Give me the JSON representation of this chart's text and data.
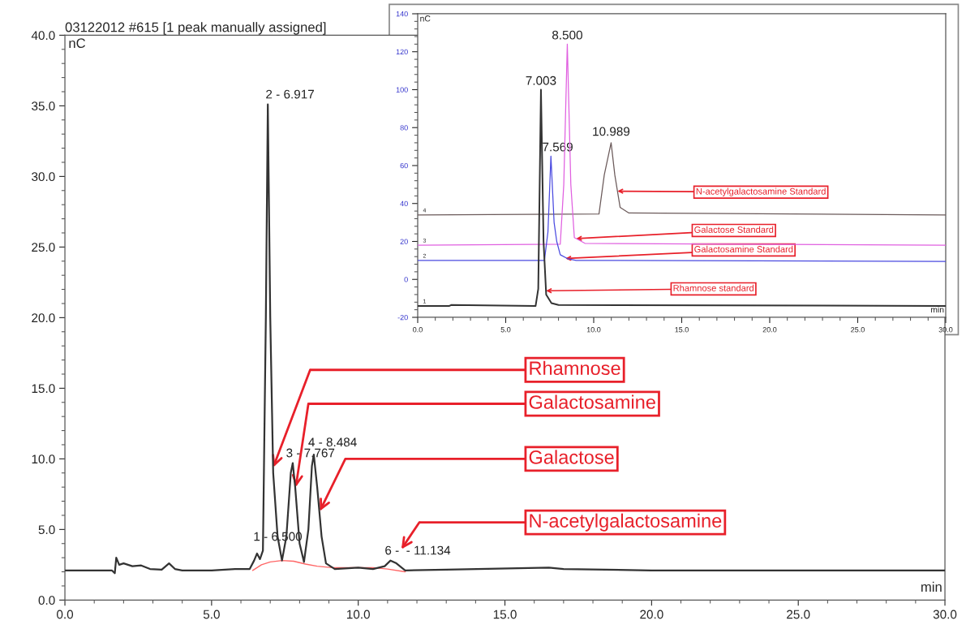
{
  "chart_data": [
    {
      "type": "line",
      "title": "03122012 #615 [1 peak manually assigned]",
      "xlabel": "min",
      "ylabel": "nC",
      "xlim": [
        0,
        30
      ],
      "ylim": [
        0,
        40
      ],
      "xticks": [
        {
          "value": 0,
          "label": "0.0"
        },
        {
          "value": 5,
          "label": "5.0"
        },
        {
          "value": 10,
          "label": "10.0"
        },
        {
          "value": 15,
          "label": "15.0"
        },
        {
          "value": 20,
          "label": "20.0"
        },
        {
          "value": 25,
          "label": "25.0"
        },
        {
          "value": 30,
          "label": "30.0"
        }
      ],
      "yticks": [
        {
          "value": 0,
          "label": "0.0"
        },
        {
          "value": 5,
          "label": "5.0"
        },
        {
          "value": 10,
          "label": "10.0"
        },
        {
          "value": 15,
          "label": "15.0"
        },
        {
          "value": 20,
          "label": "20.0"
        },
        {
          "value": 25,
          "label": "25.0"
        },
        {
          "value": 30,
          "label": "30.0"
        },
        {
          "value": 35,
          "label": "35.0"
        },
        {
          "value": 40,
          "label": "40.0"
        }
      ],
      "series": [
        {
          "color": "#333333",
          "x": [
            0,
            1.6,
            1.7,
            1.75,
            1.85,
            2.0,
            2.3,
            2.6,
            2.9,
            3.3,
            3.55,
            3.75,
            4.0,
            5.0,
            5.8,
            6.3,
            6.45,
            6.55,
            6.65,
            6.75,
            6.85,
            6.917,
            7.0,
            7.1,
            7.25,
            7.4,
            7.55,
            7.7,
            7.767,
            7.85,
            8.0,
            8.15,
            8.3,
            8.42,
            8.484,
            8.6,
            8.75,
            8.9,
            9.2,
            10,
            10.5,
            10.9,
            11.1,
            11.3,
            11.6,
            13,
            16.5,
            17,
            20,
            30
          ],
          "values": [
            2.1,
            2.1,
            1.9,
            3.0,
            2.5,
            2.6,
            2.4,
            2.45,
            2.2,
            2.15,
            2.6,
            2.2,
            2.1,
            2.1,
            2.2,
            2.2,
            2.8,
            3.3,
            2.9,
            3.5,
            20,
            35.1,
            20,
            9,
            4.5,
            2.8,
            4.5,
            9.0,
            9.7,
            8.0,
            4.0,
            2.7,
            5.0,
            9.5,
            10.3,
            8,
            4.5,
            2.6,
            2.2,
            2.3,
            2.2,
            2.4,
            2.8,
            2.6,
            2.1,
            2.15,
            2.3,
            2.2,
            2.1,
            2.1
          ]
        },
        {
          "color": "#ff6666",
          "x": [
            6.4,
            6.7,
            7.0,
            7.4,
            7.8,
            8.2,
            8.6,
            9.1,
            10.5,
            11.0,
            11.6
          ],
          "values": [
            2.1,
            2.5,
            2.7,
            2.8,
            2.75,
            2.55,
            2.4,
            2.3,
            2.3,
            2.2,
            2.0
          ]
        }
      ],
      "annotations": [
        {
          "text": "2 - 6.917",
          "x": 6.917,
          "y": 35.1
        },
        {
          "text": "1 - 6.500",
          "x": 6.5,
          "y": 3.3
        },
        {
          "text": "3 - 7.767",
          "x": 7.767,
          "y": 9.7
        },
        {
          "text": "4 - 8.484",
          "x": 8.484,
          "y": 10.3
        },
        {
          "text": "6 -  - 11.134",
          "x": 11.134,
          "y": 2.8
        },
        "Rhamnose",
        "Galactosamine",
        "Galactose",
        "N-acetylgalactosamine"
      ]
    },
    {
      "type": "line",
      "xlabel": "min",
      "ylabel": "nC",
      "xlim": [
        0,
        30
      ],
      "ylim": [
        -20,
        140
      ],
      "xticks": [
        {
          "value": 0,
          "label": "0.0"
        },
        {
          "value": 5,
          "label": "5.0"
        },
        {
          "value": 10,
          "label": "10.0"
        },
        {
          "value": 15,
          "label": "15.0"
        },
        {
          "value": 20,
          "label": "20.0"
        },
        {
          "value": 25,
          "label": "25.0"
        },
        {
          "value": 30,
          "label": "30.0"
        }
      ],
      "yticks": [
        -20,
        0,
        20,
        40,
        60,
        80,
        100,
        120,
        140
      ],
      "series": [
        {
          "name": "Rhamnose standard",
          "color": "#333333",
          "x": [
            0,
            1.8,
            1.9,
            6.7,
            6.85,
            7.003,
            7.15,
            7.3,
            7.6,
            8.0,
            30
          ],
          "values": [
            -14,
            -14,
            -13.5,
            -14,
            -5,
            100,
            20,
            -8,
            -12.5,
            -13.5,
            -14
          ]
        },
        {
          "name": "Galactosamine Standard",
          "color": "#4a4ae0",
          "x": [
            0,
            7.2,
            7.4,
            7.569,
            7.75,
            7.9,
            8.1,
            8.5,
            9.0,
            30
          ],
          "values": [
            10,
            10,
            25,
            65,
            30,
            20,
            13,
            11,
            10,
            9.5
          ]
        },
        {
          "name": "Galactose Standard",
          "color": "#e060e0",
          "x": [
            0,
            8.1,
            8.3,
            8.5,
            8.7,
            8.9,
            9.5,
            30
          ],
          "values": [
            18,
            18.5,
            50,
            124,
            50,
            22,
            19,
            18
          ]
        },
        {
          "name": "N-acetylgalactosamine Standard",
          "color": "#6b5a5a",
          "x": [
            0,
            10.3,
            10.6,
            10.989,
            11.2,
            11.5,
            12.0,
            30
          ],
          "values": [
            34,
            34.5,
            55,
            72,
            55,
            38,
            35,
            34
          ]
        }
      ],
      "annotations": [
        {
          "text": "7.003",
          "x": 7.003,
          "y": 100
        },
        {
          "text": "7.569",
          "x": 7.569,
          "y": 65
        },
        {
          "text": "8.500",
          "x": 8.5,
          "y": 124
        },
        {
          "text": "10.989",
          "x": 10.989,
          "y": 72
        },
        {
          "text": "1",
          "x": 0.3,
          "y": -12
        },
        {
          "text": "2",
          "x": 0.3,
          "y": 12
        },
        {
          "text": "3",
          "x": 0.3,
          "y": 20
        },
        {
          "text": "4",
          "x": 0.3,
          "y": 36
        }
      ]
    }
  ]
}
